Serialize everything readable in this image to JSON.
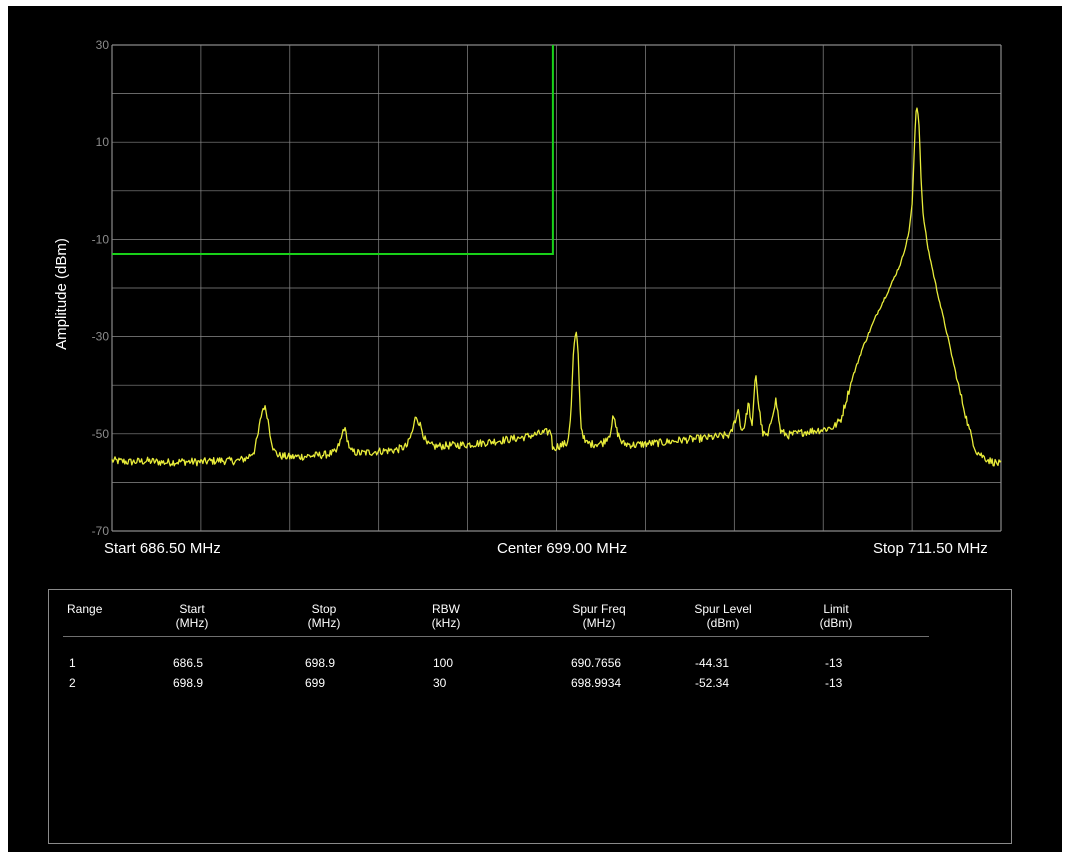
{
  "chart_data": {
    "type": "line",
    "title": "",
    "xlabel": "",
    "ylabel": "Amplitude (dBm)",
    "xlim": [
      686.5,
      711.5
    ],
    "ylim": [
      -70,
      30
    ],
    "x_unit": "MHz",
    "y_unit": "dBm",
    "grid": true,
    "y_tick_labels": [
      "30",
      "10",
      "-10",
      "-30",
      "-50",
      "-70"
    ],
    "y_ticks": [
      30,
      10,
      -10,
      -30,
      -50,
      -70
    ],
    "x_gridlines": 10,
    "y_gridlines": 10,
    "freq_labels": {
      "start": "Start 686.50 MHz",
      "center": "Center 699.00 MHz",
      "stop": "Stop 711.50 MHz"
    },
    "limit_line": {
      "color": "#19d119",
      "points": [
        [
          686.5,
          -13
        ],
        [
          698.9,
          -13
        ],
        [
          698.9,
          30
        ]
      ]
    },
    "trace": {
      "color": "#e8ec3a",
      "points": [
        [
          686.5,
          -55.5
        ],
        [
          687.0,
          -55.8
        ],
        [
          687.5,
          -55.6
        ],
        [
          688.0,
          -55.9
        ],
        [
          688.5,
          -55.7
        ],
        [
          689.0,
          -55.8
        ],
        [
          689.5,
          -55.5
        ],
        [
          690.0,
          -55.6
        ],
        [
          690.3,
          -55.0
        ],
        [
          690.5,
          -53.5
        ],
        [
          690.6,
          -50.5
        ],
        [
          690.7,
          -46.0
        ],
        [
          690.77,
          -44.3
        ],
        [
          690.85,
          -45.5
        ],
        [
          690.95,
          -50.0
        ],
        [
          691.05,
          -53.5
        ],
        [
          691.2,
          -54.5
        ],
        [
          691.5,
          -54.8
        ],
        [
          692.0,
          -54.6
        ],
        [
          692.5,
          -54.3
        ],
        [
          692.8,
          -53.8
        ],
        [
          692.95,
          -51.0
        ],
        [
          693.02,
          -48.5
        ],
        [
          693.1,
          -50.5
        ],
        [
          693.2,
          -53.6
        ],
        [
          693.5,
          -54.0
        ],
        [
          694.0,
          -53.6
        ],
        [
          694.5,
          -53.3
        ],
        [
          694.8,
          -52.5
        ],
        [
          694.95,
          -49.5
        ],
        [
          695.05,
          -46.2
        ],
        [
          695.2,
          -48.8
        ],
        [
          695.35,
          -52.2
        ],
        [
          695.6,
          -52.6
        ],
        [
          696.0,
          -52.4
        ],
        [
          696.5,
          -52.2
        ],
        [
          697.0,
          -51.8
        ],
        [
          697.5,
          -51.3
        ],
        [
          698.0,
          -50.8
        ],
        [
          698.5,
          -50.0
        ],
        [
          698.85,
          -49.5
        ],
        [
          698.9,
          -53.5
        ],
        [
          698.95,
          -52.8
        ],
        [
          699.1,
          -52.4
        ],
        [
          699.3,
          -52.0
        ],
        [
          699.4,
          -47.0
        ],
        [
          699.48,
          -32.5
        ],
        [
          699.55,
          -29.0
        ],
        [
          699.6,
          -31.5
        ],
        [
          699.68,
          -48.0
        ],
        [
          699.8,
          -51.8
        ],
        [
          700.0,
          -52.1
        ],
        [
          700.3,
          -51.9
        ],
        [
          700.5,
          -50.0
        ],
        [
          700.6,
          -46.5
        ],
        [
          700.7,
          -49.5
        ],
        [
          700.85,
          -52.0
        ],
        [
          701.2,
          -52.3
        ],
        [
          701.6,
          -52.0
        ],
        [
          702.0,
          -51.8
        ],
        [
          702.5,
          -51.3
        ],
        [
          703.0,
          -51.0
        ],
        [
          703.5,
          -50.6
        ],
        [
          703.9,
          -50.2
        ],
        [
          704.05,
          -46.5
        ],
        [
          704.12,
          -45.0
        ],
        [
          704.2,
          -49.5
        ],
        [
          704.3,
          -48.0
        ],
        [
          704.4,
          -43.5
        ],
        [
          704.5,
          -49.0
        ],
        [
          704.6,
          -37.0
        ],
        [
          704.68,
          -44.0
        ],
        [
          704.8,
          -50.0
        ],
        [
          704.95,
          -50.5
        ],
        [
          705.1,
          -45.0
        ],
        [
          705.17,
          -43.0
        ],
        [
          705.3,
          -49.5
        ],
        [
          705.5,
          -50.3
        ],
        [
          706.0,
          -49.6
        ],
        [
          706.5,
          -49.1
        ],
        [
          706.8,
          -48.6
        ],
        [
          707.0,
          -47.0
        ],
        [
          707.3,
          -39.0
        ],
        [
          707.6,
          -32.5
        ],
        [
          708.0,
          -25.5
        ],
        [
          708.4,
          -19.5
        ],
        [
          708.7,
          -14.5
        ],
        [
          708.9,
          -9.0
        ],
        [
          709.0,
          -3.0
        ],
        [
          709.05,
          6.0
        ],
        [
          709.1,
          16.0
        ],
        [
          709.15,
          17.5
        ],
        [
          709.2,
          13.0
        ],
        [
          709.25,
          3.0
        ],
        [
          709.3,
          -4.5
        ],
        [
          709.45,
          -12.0
        ],
        [
          709.7,
          -20.5
        ],
        [
          710.0,
          -30.0
        ],
        [
          710.3,
          -40.0
        ],
        [
          710.6,
          -49.0
        ],
        [
          710.8,
          -53.5
        ],
        [
          711.0,
          -54.7
        ],
        [
          711.2,
          -55.6
        ],
        [
          711.5,
          -56.3
        ]
      ]
    }
  },
  "table": {
    "headers": [
      {
        "line1": "Range",
        "line2": ""
      },
      {
        "line1": "Start",
        "line2": "(MHz)"
      },
      {
        "line1": "Stop",
        "line2": "(MHz)"
      },
      {
        "line1": "RBW",
        "line2": "(kHz)"
      },
      {
        "line1": "Spur Freq",
        "line2": "(MHz)"
      },
      {
        "line1": "Spur Level",
        "line2": "(dBm)"
      },
      {
        "line1": "Limit",
        "line2": "(dBm)"
      }
    ],
    "rows": [
      {
        "range": "1",
        "start": "686.5",
        "stop": "698.9",
        "rbw": "100",
        "spur_freq": "690.7656",
        "spur_level": "-44.31",
        "limit": "-13"
      },
      {
        "range": "2",
        "start": "698.9",
        "stop": "699",
        "rbw": "30",
        "spur_freq": "698.9934",
        "spur_level": "-52.34",
        "limit": "-13"
      }
    ]
  },
  "colors": {
    "background": "#000000",
    "grid": "#8a8a8a",
    "trace": "#e8ec3a",
    "limit": "#19d119",
    "text": "#ffffff"
  }
}
